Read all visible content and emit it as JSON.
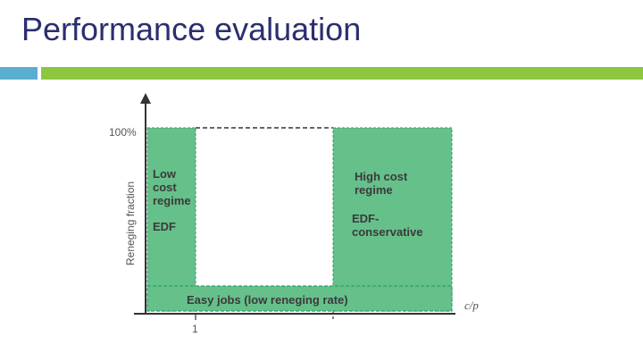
{
  "slide": {
    "title": "Performance evaluation",
    "colors": {
      "title": "#2a2f6e",
      "bar_left": "#5aaed0",
      "bar_right": "#8dc63f",
      "region_fill": "#66c08a",
      "region_border": "#2e9e6a"
    }
  },
  "diagram": {
    "y_axis_label": "Reneging fraction",
    "y_tick_label": "100%",
    "x_tick_label": "1",
    "x_axis_var": "c/p",
    "regions": {
      "low_cost": {
        "title_lines": [
          "Low",
          "cost",
          "regime"
        ],
        "policy": "EDF"
      },
      "high_cost": {
        "title_lines": [
          "High cost",
          "regime"
        ],
        "policy_lines": [
          "EDF-",
          "conservative"
        ]
      },
      "easy_jobs": {
        "label": "Easy jobs (low reneging rate)"
      }
    }
  }
}
